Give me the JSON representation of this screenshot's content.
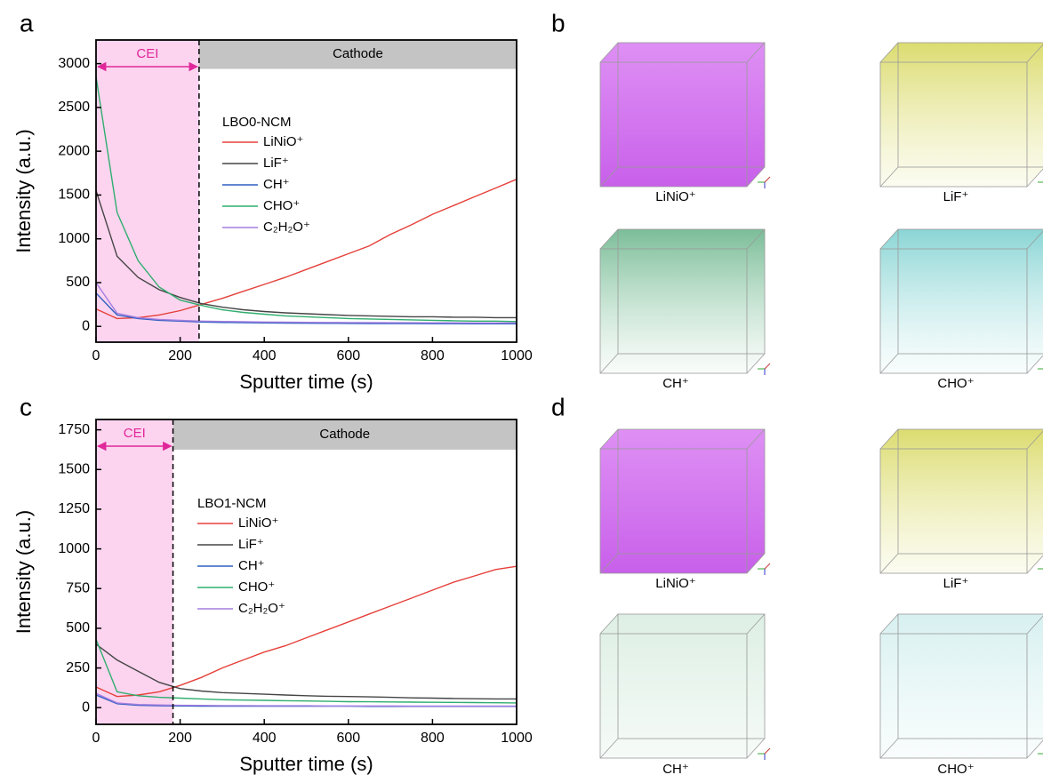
{
  "chart_data": [
    {
      "type": "line",
      "panel": "a",
      "xlabel": "Sputter time (s)",
      "ylabel": "Intensity (a.u.)",
      "legend_title": "LBO0-NCM",
      "xlim": [
        0,
        1000
      ],
      "xticks": [
        0,
        200,
        400,
        600,
        800,
        1000
      ],
      "ylim": [
        -180,
        3270
      ],
      "yticks": [
        0,
        500,
        1000,
        1500,
        2000,
        2500,
        3000
      ],
      "regions": {
        "cei": {
          "label": "CEI",
          "x_end": 245
        },
        "cathode": {
          "label": "Cathode",
          "y_bottom": 2940
        }
      },
      "x": [
        0,
        50,
        100,
        150,
        200,
        250,
        300,
        350,
        400,
        450,
        500,
        550,
        600,
        650,
        700,
        750,
        800,
        850,
        900,
        950,
        1000
      ],
      "series": [
        {
          "name": "LiNiO⁺",
          "color": "#e5403a",
          "values": [
            200,
            90,
            100,
            130,
            180,
            250,
            320,
            400,
            480,
            560,
            650,
            740,
            830,
            920,
            1050,
            1160,
            1280,
            1380,
            1480,
            1580,
            1680
          ]
        },
        {
          "name": "LiF⁺",
          "color": "#454545",
          "values": [
            1550,
            800,
            560,
            420,
            330,
            260,
            220,
            190,
            170,
            155,
            145,
            135,
            125,
            120,
            115,
            110,
            110,
            105,
            105,
            100,
            100
          ]
        },
        {
          "name": "CH⁺",
          "color": "#2f5fc2",
          "values": [
            380,
            130,
            90,
            70,
            60,
            50,
            45,
            42,
            40,
            38,
            36,
            35,
            34,
            33,
            32,
            32,
            31,
            31,
            30,
            30,
            30
          ]
        },
        {
          "name": "CHO⁺",
          "color": "#2fae6e",
          "values": [
            2850,
            1300,
            750,
            450,
            300,
            240,
            190,
            160,
            140,
            120,
            110,
            100,
            90,
            85,
            80,
            75,
            70,
            65,
            60,
            60,
            55
          ]
        },
        {
          "name": "C₂H₂O⁺",
          "color": "#a47ee0",
          "values": [
            500,
            150,
            100,
            80,
            70,
            60,
            56,
            53,
            50,
            48,
            46,
            45,
            44,
            43,
            42,
            42,
            41,
            41,
            40,
            40,
            40
          ]
        }
      ]
    },
    {
      "type": "line",
      "panel": "c",
      "xlabel": "Sputter time (s)",
      "ylabel": "Intensity (a.u.)",
      "legend_title": "LBO1-NCM",
      "xlim": [
        0,
        1000
      ],
      "xticks": [
        0,
        200,
        400,
        600,
        800,
        1000
      ],
      "ylim": [
        -105,
        1815
      ],
      "yticks": [
        0,
        250,
        500,
        750,
        1000,
        1250,
        1500,
        1750
      ],
      "regions": {
        "cei": {
          "label": "CEI",
          "x_end": 183
        },
        "cathode": {
          "label": "Cathode",
          "y_bottom": 1625
        }
      },
      "x": [
        0,
        50,
        100,
        150,
        200,
        250,
        300,
        350,
        400,
        450,
        500,
        550,
        600,
        650,
        700,
        750,
        800,
        850,
        900,
        950,
        1000
      ],
      "series": [
        {
          "name": "LiNiO⁺",
          "color": "#e5403a",
          "values": [
            130,
            70,
            80,
            100,
            140,
            190,
            250,
            300,
            350,
            390,
            440,
            490,
            540,
            590,
            640,
            690,
            740,
            790,
            830,
            870,
            890
          ]
        },
        {
          "name": "LiF⁺",
          "color": "#454545",
          "values": [
            400,
            300,
            230,
            160,
            120,
            105,
            95,
            90,
            85,
            80,
            75,
            72,
            70,
            68,
            65,
            62,
            60,
            58,
            56,
            55,
            55
          ]
        },
        {
          "name": "CH⁺",
          "color": "#2f5fc2",
          "values": [
            80,
            25,
            15,
            12,
            11,
            10,
            10,
            10,
            9,
            9,
            9,
            9,
            9,
            8,
            8,
            8,
            8,
            8,
            8,
            8,
            8
          ]
        },
        {
          "name": "CHO⁺",
          "color": "#2fae6e",
          "values": [
            430,
            100,
            75,
            65,
            60,
            55,
            50,
            48,
            46,
            44,
            42,
            40,
            38,
            37,
            36,
            35,
            34,
            33,
            32,
            31,
            30
          ]
        },
        {
          "name": "C₂H₂O⁺",
          "color": "#a47ee0",
          "values": [
            90,
            30,
            20,
            17,
            15,
            14,
            13,
            13,
            12,
            12,
            12,
            11,
            11,
            11,
            11,
            10,
            10,
            10,
            10,
            10,
            10
          ]
        }
      ]
    }
  ],
  "cube_panels": [
    {
      "panel": "b",
      "cubes": [
        "LiNiO⁺",
        "LiF⁺",
        "CH⁺",
        "CHO⁺"
      ]
    },
    {
      "panel": "d",
      "cubes": [
        "LiNiO⁺",
        "LiF⁺",
        "CH⁺",
        "CHO⁺"
      ]
    }
  ]
}
